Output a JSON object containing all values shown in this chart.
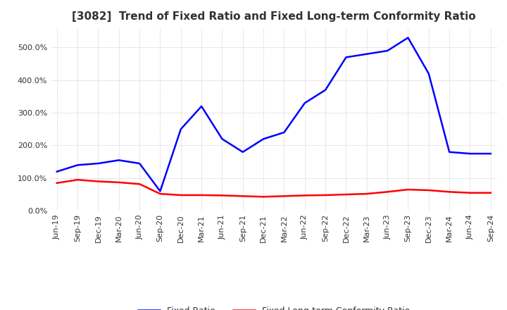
{
  "title": "[3082]  Trend of Fixed Ratio and Fixed Long-term Conformity Ratio",
  "x_labels": [
    "Jun-19",
    "Sep-19",
    "Dec-19",
    "Mar-20",
    "Jun-20",
    "Sep-20",
    "Dec-20",
    "Mar-21",
    "Jun-21",
    "Sep-21",
    "Dec-21",
    "Mar-22",
    "Jun-22",
    "Sep-22",
    "Dec-22",
    "Mar-23",
    "Jun-23",
    "Sep-23",
    "Dec-23",
    "Mar-24",
    "Jun-24",
    "Sep-24"
  ],
  "fixed_ratio": [
    120,
    140,
    145,
    155,
    145,
    60,
    250,
    320,
    220,
    180,
    220,
    240,
    330,
    370,
    470,
    480,
    490,
    530,
    420,
    180,
    175,
    175
  ],
  "fixed_lt_ratio": [
    85,
    95,
    90,
    87,
    82,
    52,
    48,
    48,
    47,
    45,
    43,
    45,
    47,
    48,
    50,
    52,
    58,
    65,
    63,
    58,
    55,
    55
  ],
  "fixed_ratio_color": "#0000ff",
  "fixed_lt_ratio_color": "#ff0000",
  "ylim": [
    0,
    560
  ],
  "yticks": [
    0,
    100,
    200,
    300,
    400,
    500
  ],
  "background_color": "#ffffff",
  "grid_color": "#aaaaaa",
  "legend_fixed_ratio": "Fixed Ratio",
  "legend_fixed_lt_ratio": "Fixed Long-term Conformity Ratio",
  "title_fontsize": 11,
  "tick_fontsize": 8,
  "legend_fontsize": 9
}
